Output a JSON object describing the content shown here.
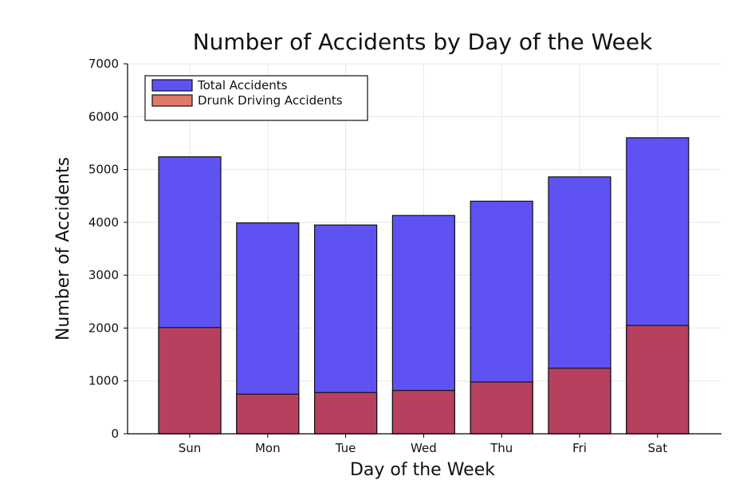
{
  "chart_data": {
    "type": "bar",
    "title": "Number of Accidents by Day of the Week",
    "xlabel": "Day of the Week",
    "ylabel": "Number of Accidents",
    "categories": [
      "Sun",
      "Mon",
      "Tue",
      "Wed",
      "Thu",
      "Fri",
      "Sat"
    ],
    "ylim": [
      0,
      7000
    ],
    "yticks": [
      0,
      1000,
      2000,
      3000,
      4000,
      5000,
      6000,
      7000
    ],
    "grid": true,
    "legend_position": "top-left",
    "series": [
      {
        "name": "Total Accidents",
        "color": "#5f52f3",
        "values": [
          5240,
          3990,
          3950,
          4130,
          4400,
          4860,
          5600
        ]
      },
      {
        "name": "Drunk Driving Accidents",
        "color": "#b7405f",
        "legend_color": "#e07a68",
        "values": [
          2010,
          750,
          780,
          820,
          980,
          1240,
          2050
        ]
      }
    ]
  }
}
